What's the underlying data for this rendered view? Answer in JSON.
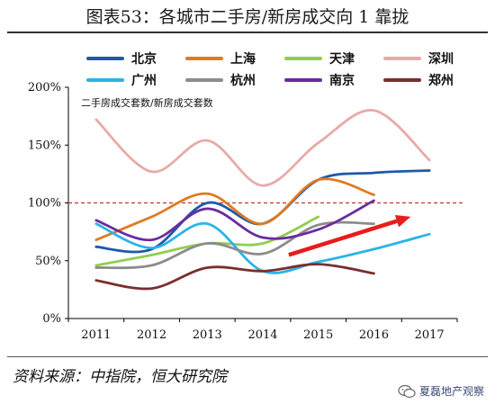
{
  "title": "图表53：各城市二手房/新房成交向 1 靠拢",
  "source": "资料来源：中指院，恒大研究院",
  "watermark": "夏磊地产观察",
  "chart_data": {
    "type": "line",
    "subtitle": "二手房成交套数/新房成交套数",
    "x": [
      "2011",
      "2012",
      "2013",
      "2014",
      "2015",
      "2016",
      "2017"
    ],
    "y_ticks": [
      "0%",
      "50%",
      "100%",
      "150%",
      "200%"
    ],
    "ylim": [
      0,
      2.0
    ],
    "reference_line": 1.0,
    "reference_color": "#c0392b",
    "grid": false,
    "legend_position": "top",
    "series": [
      {
        "name": "北京",
        "color": "#1f5aa6",
        "values": [
          [
            0,
            0.62
          ],
          [
            1,
            0.6
          ],
          [
            2,
            1.0
          ],
          [
            3,
            0.82
          ],
          [
            4,
            1.2
          ],
          [
            5,
            1.26
          ],
          [
            6,
            1.28
          ]
        ]
      },
      {
        "name": "上海",
        "color": "#e07b1f",
        "values": [
          [
            0,
            0.68
          ],
          [
            1,
            0.88
          ],
          [
            2,
            1.08
          ],
          [
            3,
            0.82
          ],
          [
            4,
            1.2
          ],
          [
            5,
            1.07
          ]
        ]
      },
      {
        "name": "天津",
        "color": "#8fce4f",
        "values": [
          [
            0,
            0.46
          ],
          [
            1,
            0.55
          ],
          [
            2,
            0.65
          ],
          [
            3,
            0.65
          ],
          [
            4,
            0.88
          ]
        ]
      },
      {
        "name": "深圳",
        "color": "#e8aaa8",
        "values": [
          [
            0,
            1.72
          ],
          [
            1,
            1.27
          ],
          [
            2,
            1.54
          ],
          [
            3,
            1.15
          ],
          [
            4,
            1.52
          ],
          [
            5,
            1.8
          ],
          [
            6,
            1.37
          ]
        ]
      },
      {
        "name": "广州",
        "color": "#2ab4e8",
        "values": [
          [
            0,
            0.82
          ],
          [
            1,
            0.61
          ],
          [
            2,
            0.82
          ],
          [
            3,
            0.41
          ],
          [
            4,
            0.49
          ],
          [
            5,
            0.6
          ],
          [
            6,
            0.73
          ]
        ]
      },
      {
        "name": "杭州",
        "color": "#8c8c8c",
        "values": [
          [
            0,
            0.44
          ],
          [
            1,
            0.46
          ],
          [
            2,
            0.65
          ],
          [
            3,
            0.56
          ],
          [
            4,
            0.81
          ],
          [
            5,
            0.82
          ]
        ]
      },
      {
        "name": "南京",
        "color": "#6a2b9e",
        "values": [
          [
            0,
            0.85
          ],
          [
            1,
            0.68
          ],
          [
            2,
            0.95
          ],
          [
            3,
            0.7
          ],
          [
            4,
            0.77
          ],
          [
            5,
            1.02
          ]
        ]
      },
      {
        "name": "郑州",
        "color": "#7a2e2e",
        "values": [
          [
            0,
            0.33
          ],
          [
            1,
            0.26
          ],
          [
            2,
            0.44
          ],
          [
            3,
            0.41
          ],
          [
            4,
            0.47
          ],
          [
            5,
            0.39
          ]
        ]
      }
    ],
    "trend_arrow": {
      "from": [
        4.0,
        0.55
      ],
      "to": [
        6.0,
        0.88
      ],
      "color": "#e81c1c"
    }
  }
}
